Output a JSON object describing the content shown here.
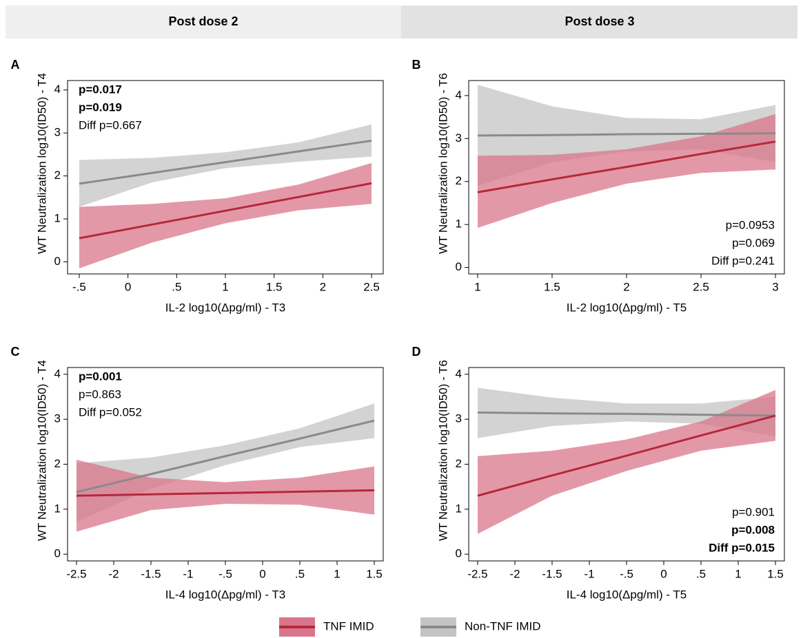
{
  "header": {
    "columns": [
      "Post dose 2",
      "Post dose 3"
    ]
  },
  "legend": [
    {
      "name": "TNF IMID",
      "color": "#b5283a",
      "band_color": "#d9768b"
    },
    {
      "name": "Non-TNF IMID",
      "color": "#8a8a8a",
      "band_color": "#c4c4c4"
    }
  ],
  "chart_data": [
    {
      "type": "line",
      "label": "A",
      "x_label": "IL-2 log10(Δpg/ml) - T3",
      "y_label": "WT Neutralization log10(ID50) - T4",
      "xlim": [
        -0.62,
        2.62
      ],
      "ylim": [
        -0.28,
        4.22
      ],
      "grid": false,
      "xticks": [
        {
          "value": -0.5,
          "label": "-.5"
        },
        0,
        {
          "value": 0.5,
          "label": ".5"
        },
        1,
        1.5,
        2,
        2.5
      ],
      "yticks": [
        0,
        1,
        2,
        3,
        4
      ],
      "x": [
        -0.5,
        0.25,
        1,
        1.75,
        2.5
      ],
      "series": [
        {
          "color": "#8a8a8a",
          "band_color": "#c4c4c4",
          "values": [
            1.82,
            2.07,
            2.32,
            2.57,
            2.82
          ],
          "lower": [
            1.28,
            1.85,
            2.18,
            2.33,
            2.45
          ],
          "upper": [
            2.37,
            2.42,
            2.55,
            2.78,
            3.2
          ]
        },
        {
          "color": "#b5283a",
          "band_color": "#d9768b",
          "values": [
            0.55,
            0.87,
            1.19,
            1.51,
            1.83
          ],
          "lower": [
            -0.15,
            0.45,
            0.9,
            1.2,
            1.35
          ],
          "upper": [
            1.28,
            1.35,
            1.48,
            1.8,
            2.3
          ]
        }
      ],
      "annotation_corner": "upper left",
      "annotations": [
        {
          "text": "p=0.017",
          "color": "#999999",
          "bold": true
        },
        {
          "text": "p=0.019",
          "color": "#c0143c",
          "bold": true
        },
        {
          "text": "Diff p=0.667",
          "color": "#000000",
          "bold": false
        }
      ]
    },
    {
      "type": "line",
      "label": "B",
      "x_label": "IL-2 log10(Δpg/ml) - T5",
      "y_label": "WT Neutralization log10(ID50) - T6",
      "xlim": [
        0.94,
        3.06
      ],
      "ylim": [
        -0.15,
        4.35
      ],
      "grid": false,
      "xticks": [
        1,
        1.5,
        2,
        2.5,
        3
      ],
      "yticks": [
        0,
        1,
        2,
        3,
        4
      ],
      "x": [
        1,
        1.5,
        2,
        2.5,
        3
      ],
      "series": [
        {
          "color": "#8a8a8a",
          "band_color": "#c4c4c4",
          "values": [
            3.07,
            3.08,
            3.1,
            3.11,
            3.12
          ],
          "lower": [
            1.9,
            2.45,
            2.7,
            2.75,
            2.45
          ],
          "upper": [
            4.25,
            3.75,
            3.48,
            3.45,
            3.78
          ]
        },
        {
          "color": "#b5283a",
          "band_color": "#d9768b",
          "values": [
            1.75,
            2.05,
            2.34,
            2.64,
            2.93
          ],
          "lower": [
            0.92,
            1.5,
            1.95,
            2.2,
            2.28
          ],
          "upper": [
            2.6,
            2.62,
            2.75,
            3.05,
            3.57
          ]
        }
      ],
      "annotation_corner": "lower right",
      "annotations": [
        {
          "text": "p=0.0953",
          "color": "#999999",
          "bold": false
        },
        {
          "text": "p=0.069",
          "color": "#c0143c",
          "bold": false
        },
        {
          "text": "Diff p=0.241",
          "color": "#000000",
          "bold": false
        }
      ]
    },
    {
      "type": "line",
      "label": "C",
      "x_label": "IL-4 log10(Δpg/ml) - T3",
      "y_label": "WT Neutralization log10(ID50) - T4",
      "xlim": [
        -2.62,
        1.62
      ],
      "ylim": [
        -0.15,
        4.15
      ],
      "grid": false,
      "xticks": [
        -2.5,
        -2,
        -1.5,
        -1,
        {
          "value": -0.5,
          "label": "-.5"
        },
        0,
        {
          "value": 0.5,
          "label": ".5"
        },
        1,
        1.5
      ],
      "yticks": [
        0,
        1,
        2,
        3,
        4
      ],
      "x": [
        -2.5,
        -1.5,
        -0.5,
        0.5,
        1.5
      ],
      "series": [
        {
          "color": "#8a8a8a",
          "band_color": "#c4c4c4",
          "values": [
            1.38,
            1.78,
            2.18,
            2.57,
            2.97
          ],
          "lower": [
            0.72,
            1.45,
            1.98,
            2.38,
            2.58
          ],
          "upper": [
            2.02,
            2.15,
            2.42,
            2.8,
            3.35
          ]
        },
        {
          "color": "#b5283a",
          "band_color": "#d9768b",
          "values": [
            1.3,
            1.33,
            1.36,
            1.39,
            1.42
          ],
          "lower": [
            0.5,
            0.98,
            1.12,
            1.1,
            0.88
          ],
          "upper": [
            2.1,
            1.7,
            1.6,
            1.7,
            1.95
          ]
        }
      ],
      "annotation_corner": "upper left",
      "annotations": [
        {
          "text": "p=0.001",
          "color": "#999999",
          "bold": true
        },
        {
          "text": "p=0.863",
          "color": "#c0143c",
          "bold": false
        },
        {
          "text": "Diff p=0.052",
          "color": "#000000",
          "bold": false
        }
      ]
    },
    {
      "type": "line",
      "label": "D",
      "x_label": "IL-4 log10(Δpg/ml) - T5",
      "y_label": "WT Neutralization log10(ID50) - T6",
      "xlim": [
        -2.62,
        1.62
      ],
      "ylim": [
        -0.15,
        4.15
      ],
      "grid": false,
      "xticks": [
        -2.5,
        -2,
        -1.5,
        -1,
        {
          "value": -0.5,
          "label": "-.5"
        },
        0,
        {
          "value": 0.5,
          "label": ".5"
        },
        1,
        1.5
      ],
      "yticks": [
        0,
        1,
        2,
        3,
        4
      ],
      "x": [
        -2.5,
        -1.5,
        -0.5,
        0.5,
        1.5
      ],
      "series": [
        {
          "color": "#8a8a8a",
          "band_color": "#c4c4c4",
          "values": [
            3.15,
            3.13,
            3.12,
            3.1,
            3.08
          ],
          "lower": [
            2.58,
            2.85,
            2.95,
            2.9,
            2.62
          ],
          "upper": [
            3.7,
            3.48,
            3.35,
            3.35,
            3.5
          ]
        },
        {
          "color": "#b5283a",
          "band_color": "#d9768b",
          "values": [
            1.3,
            1.75,
            2.19,
            2.64,
            3.08
          ],
          "lower": [
            0.45,
            1.3,
            1.85,
            2.3,
            2.52
          ],
          "upper": [
            2.18,
            2.3,
            2.55,
            2.95,
            3.65
          ]
        }
      ],
      "annotation_corner": "lower right",
      "annotations": [
        {
          "text": "p=0.901",
          "color": "#999999",
          "bold": false
        },
        {
          "text": "p=0.008",
          "color": "#c0143c",
          "bold": true
        },
        {
          "text": "Diff p=0.015",
          "color": "#000000",
          "bold": true
        }
      ]
    }
  ]
}
